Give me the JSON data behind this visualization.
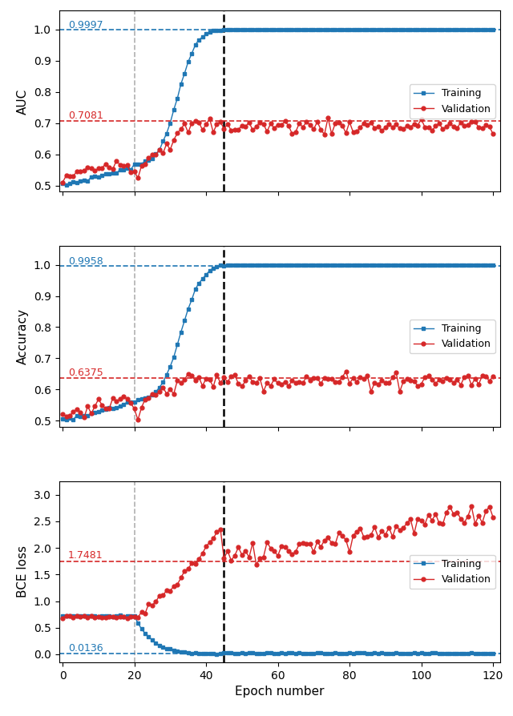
{
  "gray_vline": 20,
  "black_vline": 45,
  "xlim": [
    -1,
    122
  ],
  "xticks": [
    0,
    20,
    40,
    60,
    80,
    100,
    120
  ],
  "xlabel": "Epoch number",
  "auc": {
    "ylabel": "AUC",
    "ylim": [
      0.48,
      1.06
    ],
    "yticks": [
      0.5,
      0.6,
      0.7,
      0.8,
      0.9,
      1.0
    ],
    "train_max": 0.9997,
    "val_max": 0.7081
  },
  "acc": {
    "ylabel": "Accuracy",
    "ylim": [
      0.48,
      1.06
    ],
    "yticks": [
      0.5,
      0.6,
      0.7,
      0.8,
      0.9,
      1.0
    ],
    "train_max": 0.9958,
    "val_max": 0.6375
  },
  "loss": {
    "ylabel": "BCE loss",
    "ylim": [
      -0.15,
      3.25
    ],
    "yticks": [
      0.0,
      0.5,
      1.0,
      1.5,
      2.0,
      2.5,
      3.0
    ],
    "train_min": 0.0136,
    "val_ref": 1.7481
  },
  "figsize": [
    6.4,
    8.94
  ],
  "dpi": 100,
  "train_label": "Training",
  "val_label": "Validation",
  "blue_color": "#1f77b4",
  "red_color": "#d62728",
  "gray_color": "#b0b0b0"
}
